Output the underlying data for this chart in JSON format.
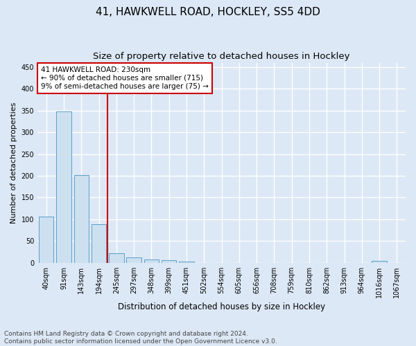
{
  "title1": "41, HAWKWELL ROAD, HOCKLEY, SS5 4DD",
  "title2": "Size of property relative to detached houses in Hockley",
  "xlabel": "Distribution of detached houses by size in Hockley",
  "ylabel": "Number of detached properties",
  "categories": [
    "40sqm",
    "91sqm",
    "143sqm",
    "194sqm",
    "245sqm",
    "297sqm",
    "348sqm",
    "399sqm",
    "451sqm",
    "502sqm",
    "554sqm",
    "605sqm",
    "656sqm",
    "708sqm",
    "759sqm",
    "810sqm",
    "862sqm",
    "913sqm",
    "964sqm",
    "1016sqm",
    "1067sqm"
  ],
  "values": [
    107,
    348,
    202,
    88,
    22,
    13,
    8,
    6,
    3,
    0,
    0,
    0,
    0,
    0,
    0,
    0,
    0,
    0,
    0,
    4,
    0
  ],
  "bar_color": "#cce0f0",
  "bar_edge_color": "#5a9ec9",
  "vline_index": 4,
  "vline_color": "#cc0000",
  "annotation_line1": "41 HAWKWELL ROAD: 230sqm",
  "annotation_line2": "← 90% of detached houses are smaller (715)",
  "annotation_line3": "9% of semi-detached houses are larger (75) →",
  "annotation_box_color": "#ffffff",
  "annotation_box_edge": "#cc0000",
  "ylim": [
    0,
    460
  ],
  "yticks": [
    0,
    50,
    100,
    150,
    200,
    250,
    300,
    350,
    400,
    450
  ],
  "background_color": "#dce8f5",
  "grid_color": "#ffffff",
  "footer": "Contains HM Land Registry data © Crown copyright and database right 2024.\nContains public sector information licensed under the Open Government Licence v3.0.",
  "title1_fontsize": 11,
  "title2_fontsize": 9.5,
  "xlabel_fontsize": 8.5,
  "ylabel_fontsize": 8,
  "tick_fontsize": 7,
  "annotation_fontsize": 7.5,
  "footer_fontsize": 6.5
}
